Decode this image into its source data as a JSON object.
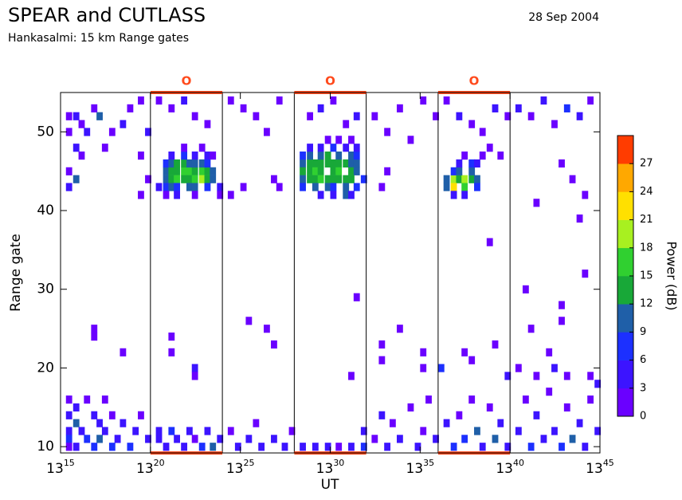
{
  "chart_data": {
    "type": "heatmap",
    "title": "SPEAR and CUTLASS",
    "subtitle": "Hankasalmi: 15 km Range gates",
    "date": "28 Sep 2004",
    "x_label": "UT",
    "y_label": "Range gate",
    "colorbar_label": "Power (dB)",
    "xlim": [
      15,
      45
    ],
    "xticks": [
      {
        "value": 15,
        "label": "13",
        "sup": "15"
      },
      {
        "value": 20,
        "label": "13",
        "sup": "20"
      },
      {
        "value": 25,
        "label": "13",
        "sup": "25"
      },
      {
        "value": 30,
        "label": "13",
        "sup": "30"
      },
      {
        "value": 35,
        "label": "13",
        "sup": "35"
      },
      {
        "value": 40,
        "label": "13",
        "sup": "40"
      },
      {
        "value": 45,
        "label": "13",
        "sup": "45"
      }
    ],
    "ylim": [
      9.2,
      55
    ],
    "yticks": [
      10,
      20,
      30,
      40,
      50
    ],
    "colorscale": {
      "limits": [
        0,
        30
      ],
      "ticks": [
        0,
        3,
        6,
        9,
        12,
        15,
        18,
        21,
        24,
        27
      ],
      "colors": [
        "#6a00ff",
        "#3c14ff",
        "#1c30ff",
        "#1f5fa8",
        "#18a838",
        "#30d030",
        "#a8f020",
        "#ffe000",
        "#ffa800",
        "#ff3c00"
      ]
    },
    "interval_color": "#ff4a1c",
    "intervals": [
      {
        "start": 20,
        "end": 24,
        "label": "O"
      },
      {
        "start": 28,
        "end": 32,
        "label": "O"
      },
      {
        "start": 36,
        "end": 40,
        "label": "O"
      }
    ],
    "cells": [
      [
        20.7,
        45,
        9
      ],
      [
        21.0,
        45,
        12
      ],
      [
        21.3,
        45,
        14
      ],
      [
        21.7,
        45,
        15
      ],
      [
        22.0,
        45,
        15
      ],
      [
        22.3,
        45,
        14
      ],
      [
        22.7,
        45,
        17
      ],
      [
        23.0,
        45,
        14
      ],
      [
        23.3,
        45,
        11
      ],
      [
        20.7,
        44,
        10
      ],
      [
        21.0,
        44,
        13
      ],
      [
        21.3,
        44,
        15
      ],
      [
        21.7,
        44,
        14
      ],
      [
        22.0,
        44,
        13
      ],
      [
        22.3,
        44,
        15
      ],
      [
        22.7,
        44,
        18
      ],
      [
        23.0,
        44,
        13
      ],
      [
        23.3,
        44,
        9
      ],
      [
        20.7,
        46,
        7
      ],
      [
        21.0,
        46,
        10
      ],
      [
        21.3,
        46,
        13
      ],
      [
        21.7,
        46,
        12
      ],
      [
        22.0,
        46,
        10
      ],
      [
        22.3,
        46,
        11
      ],
      [
        22.7,
        46,
        9
      ],
      [
        23.0,
        46,
        8
      ],
      [
        20.3,
        43,
        5
      ],
      [
        20.7,
        43,
        8
      ],
      [
        21.0,
        43,
        9
      ],
      [
        21.3,
        43,
        7
      ],
      [
        22.0,
        43,
        10
      ],
      [
        22.3,
        43,
        9
      ],
      [
        23.0,
        43,
        6
      ],
      [
        23.7,
        43,
        4
      ],
      [
        21.0,
        47,
        4
      ],
      [
        21.7,
        47,
        6
      ],
      [
        22.3,
        47,
        5
      ],
      [
        23.0,
        47,
        3
      ],
      [
        23.3,
        47,
        2
      ],
      [
        20.7,
        42,
        2
      ],
      [
        21.3,
        42,
        3
      ],
      [
        22.3,
        42,
        2
      ],
      [
        23.7,
        42,
        1
      ],
      [
        21.7,
        48,
        2
      ],
      [
        22.7,
        48,
        1
      ],
      [
        28.3,
        46,
        11
      ],
      [
        28.7,
        46,
        13
      ],
      [
        29.0,
        46,
        14
      ],
      [
        29.3,
        46,
        13
      ],
      [
        29.7,
        46,
        12
      ],
      [
        30.0,
        46,
        12
      ],
      [
        30.3,
        46,
        13
      ],
      [
        30.7,
        46,
        12
      ],
      [
        31.0,
        46,
        11
      ],
      [
        31.3,
        46,
        9
      ],
      [
        28.3,
        45,
        12
      ],
      [
        28.7,
        45,
        14
      ],
      [
        29.0,
        45,
        15
      ],
      [
        29.3,
        45,
        14
      ],
      [
        30.0,
        45,
        13
      ],
      [
        30.3,
        45,
        15
      ],
      [
        31.0,
        45,
        13
      ],
      [
        31.3,
        45,
        10
      ],
      [
        28.3,
        44,
        10
      ],
      [
        28.7,
        44,
        13
      ],
      [
        29.0,
        44,
        14
      ],
      [
        29.3,
        44,
        16
      ],
      [
        29.7,
        44,
        13
      ],
      [
        30.0,
        44,
        14
      ],
      [
        30.3,
        44,
        13
      ],
      [
        30.7,
        44,
        14
      ],
      [
        31.0,
        44,
        12
      ],
      [
        31.7,
        44,
        6
      ],
      [
        28.3,
        47,
        8
      ],
      [
        28.7,
        47,
        10
      ],
      [
        29.3,
        47,
        11
      ],
      [
        29.7,
        47,
        12
      ],
      [
        30.3,
        47,
        10
      ],
      [
        31.0,
        47,
        9
      ],
      [
        31.3,
        47,
        8
      ],
      [
        28.3,
        43,
        7
      ],
      [
        29.0,
        43,
        9
      ],
      [
        29.7,
        43,
        10
      ],
      [
        30.0,
        43,
        8
      ],
      [
        30.7,
        43,
        9
      ],
      [
        31.3,
        43,
        7
      ],
      [
        28.7,
        48,
        4
      ],
      [
        29.3,
        48,
        5
      ],
      [
        30.0,
        48,
        6
      ],
      [
        30.7,
        48,
        5
      ],
      [
        31.3,
        48,
        4
      ],
      [
        29.3,
        42,
        3
      ],
      [
        30.0,
        42,
        4
      ],
      [
        30.7,
        42,
        9
      ],
      [
        31.0,
        42,
        3
      ],
      [
        29.7,
        49,
        2
      ],
      [
        30.3,
        49,
        2
      ],
      [
        31.0,
        49,
        1
      ],
      [
        36.3,
        44,
        10
      ],
      [
        36.7,
        44,
        18
      ],
      [
        37.0,
        44,
        12
      ],
      [
        37.3,
        44,
        19
      ],
      [
        37.7,
        44,
        13
      ],
      [
        38.0,
        44,
        9
      ],
      [
        36.3,
        43,
        9
      ],
      [
        36.7,
        43,
        21
      ],
      [
        37.3,
        43,
        16
      ],
      [
        38.0,
        43,
        8
      ],
      [
        36.7,
        45,
        8
      ],
      [
        37.0,
        45,
        9
      ],
      [
        37.7,
        45,
        10
      ],
      [
        37.0,
        46,
        5
      ],
      [
        37.7,
        46,
        6
      ],
      [
        38.0,
        46,
        4
      ],
      [
        36.7,
        42,
        3
      ],
      [
        37.3,
        42,
        4
      ],
      [
        37.3,
        47,
        2
      ],
      [
        38.3,
        47,
        1
      ],
      [
        15.3,
        52,
        2
      ],
      [
        15.7,
        52,
        3
      ],
      [
        16.0,
        51,
        1
      ],
      [
        15.3,
        50,
        2
      ],
      [
        16.3,
        50,
        4
      ],
      [
        16.7,
        53,
        2
      ],
      [
        17.0,
        52,
        9
      ],
      [
        15.7,
        48,
        3
      ],
      [
        16.0,
        47,
        2
      ],
      [
        17.3,
        48,
        1
      ],
      [
        15.3,
        45,
        1
      ],
      [
        15.7,
        44,
        10
      ],
      [
        15.3,
        43,
        4
      ],
      [
        17.7,
        50,
        2
      ],
      [
        18.3,
        51,
        3
      ],
      [
        18.7,
        53,
        1
      ],
      [
        19.3,
        54,
        2
      ],
      [
        19.7,
        50,
        3
      ],
      [
        19.3,
        47,
        1
      ],
      [
        19.7,
        44,
        2
      ],
      [
        19.3,
        42,
        1
      ],
      [
        20.3,
        54,
        2
      ],
      [
        21.0,
        53,
        1
      ],
      [
        21.7,
        54,
        3
      ],
      [
        22.3,
        52,
        2
      ],
      [
        23.0,
        51,
        1
      ],
      [
        24.3,
        54,
        2
      ],
      [
        25.0,
        53,
        1
      ],
      [
        25.7,
        52,
        2
      ],
      [
        26.3,
        50,
        1
      ],
      [
        27.0,
        54,
        2
      ],
      [
        26.7,
        44,
        1
      ],
      [
        27.0,
        43,
        2
      ],
      [
        25.0,
        43,
        1
      ],
      [
        24.3,
        42,
        2
      ],
      [
        28.7,
        52,
        2
      ],
      [
        29.3,
        53,
        3
      ],
      [
        30.0,
        54,
        2
      ],
      [
        30.7,
        51,
        1
      ],
      [
        31.3,
        52,
        3
      ],
      [
        32.3,
        52,
        1
      ],
      [
        33.0,
        50,
        2
      ],
      [
        33.7,
        53,
        1
      ],
      [
        34.3,
        49,
        2
      ],
      [
        35.0,
        54,
        1
      ],
      [
        35.7,
        52,
        2
      ],
      [
        33.0,
        45,
        1
      ],
      [
        32.7,
        43,
        2
      ],
      [
        36.3,
        54,
        2
      ],
      [
        37.0,
        52,
        3
      ],
      [
        37.7,
        51,
        2
      ],
      [
        38.3,
        50,
        1
      ],
      [
        39.0,
        53,
        3
      ],
      [
        39.7,
        52,
        2
      ],
      [
        38.7,
        48,
        1
      ],
      [
        39.3,
        47,
        2
      ],
      [
        40.3,
        53,
        3
      ],
      [
        41.0,
        52,
        2
      ],
      [
        41.7,
        54,
        4
      ],
      [
        42.3,
        51,
        2
      ],
      [
        43.0,
        53,
        8
      ],
      [
        43.7,
        52,
        3
      ],
      [
        44.3,
        54,
        2
      ],
      [
        42.7,
        46,
        1
      ],
      [
        43.3,
        44,
        2
      ],
      [
        44.0,
        42,
        1
      ],
      [
        43.7,
        39,
        2
      ],
      [
        41.3,
        41,
        1
      ],
      [
        38.7,
        36,
        1
      ],
      [
        44.0,
        32,
        1
      ],
      [
        40.7,
        30,
        2
      ],
      [
        42.7,
        28,
        1
      ],
      [
        31.3,
        29,
        1
      ],
      [
        16.7,
        25,
        2
      ],
      [
        16.7,
        24,
        1
      ],
      [
        18.3,
        22,
        2
      ],
      [
        21.0,
        24,
        2
      ],
      [
        21.0,
        22,
        1
      ],
      [
        22.3,
        20,
        3
      ],
      [
        22.3,
        19,
        2
      ],
      [
        25.3,
        26,
        2
      ],
      [
        26.3,
        25,
        1
      ],
      [
        26.7,
        23,
        2
      ],
      [
        31.0,
        19,
        1
      ],
      [
        32.7,
        23,
        2
      ],
      [
        32.7,
        21,
        1
      ],
      [
        33.7,
        25,
        2
      ],
      [
        35.0,
        22,
        1
      ],
      [
        35.0,
        20,
        2
      ],
      [
        36.0,
        20,
        7
      ],
      [
        37.3,
        22,
        2
      ],
      [
        37.7,
        21,
        1
      ],
      [
        39.0,
        23,
        2
      ],
      [
        39.7,
        19,
        3
      ],
      [
        40.3,
        20,
        1
      ],
      [
        41.3,
        19,
        2
      ],
      [
        42.0,
        22,
        1
      ],
      [
        42.3,
        20,
        3
      ],
      [
        43.0,
        19,
        2
      ],
      [
        44.3,
        19,
        1
      ],
      [
        44.7,
        18,
        3
      ],
      [
        42.7,
        26,
        2
      ],
      [
        41.0,
        25,
        1
      ],
      [
        15.3,
        16,
        2
      ],
      [
        15.3,
        14,
        4
      ],
      [
        15.3,
        12,
        3
      ],
      [
        15.3,
        11,
        6
      ],
      [
        15.3,
        10,
        2
      ],
      [
        15.7,
        15,
        3
      ],
      [
        15.7,
        13,
        9
      ],
      [
        15.7,
        10,
        5
      ],
      [
        16.0,
        12,
        4
      ],
      [
        16.3,
        11,
        8
      ],
      [
        16.3,
        16,
        2
      ],
      [
        16.7,
        14,
        3
      ],
      [
        16.7,
        10,
        7
      ],
      [
        17.0,
        13,
        5
      ],
      [
        17.0,
        11,
        10
      ],
      [
        17.3,
        16,
        2
      ],
      [
        17.3,
        12,
        4
      ],
      [
        17.7,
        10,
        6
      ],
      [
        17.7,
        14,
        2
      ],
      [
        18.0,
        11,
        5
      ],
      [
        18.3,
        13,
        3
      ],
      [
        18.7,
        10,
        8
      ],
      [
        19.0,
        12,
        4
      ],
      [
        19.3,
        14,
        2
      ],
      [
        19.7,
        11,
        3
      ],
      [
        20.3,
        12,
        5
      ],
      [
        20.3,
        11,
        3
      ],
      [
        20.7,
        10,
        4
      ],
      [
        21.0,
        12,
        6
      ],
      [
        21.3,
        11,
        5
      ],
      [
        21.7,
        10,
        3
      ],
      [
        22.0,
        12,
        4
      ],
      [
        22.3,
        11,
        2
      ],
      [
        22.7,
        10,
        6
      ],
      [
        23.0,
        12,
        3
      ],
      [
        23.3,
        10,
        11
      ],
      [
        23.7,
        11,
        5
      ],
      [
        24.3,
        12,
        2
      ],
      [
        24.7,
        10,
        4
      ],
      [
        25.3,
        11,
        3
      ],
      [
        25.7,
        13,
        2
      ],
      [
        26.0,
        10,
        5
      ],
      [
        26.7,
        11,
        3
      ],
      [
        27.3,
        10,
        4
      ],
      [
        27.7,
        12,
        2
      ],
      [
        28.3,
        10,
        4
      ],
      [
        29.0,
        10,
        3
      ],
      [
        29.7,
        10,
        5
      ],
      [
        30.3,
        10,
        2
      ],
      [
        31.0,
        10,
        4
      ],
      [
        31.7,
        10,
        6
      ],
      [
        31.7,
        12,
        3
      ],
      [
        32.3,
        11,
        2
      ],
      [
        32.7,
        14,
        3
      ],
      [
        33.0,
        10,
        4
      ],
      [
        33.3,
        13,
        2
      ],
      [
        33.7,
        11,
        5
      ],
      [
        34.3,
        15,
        1
      ],
      [
        34.7,
        10,
        3
      ],
      [
        35.0,
        12,
        2
      ],
      [
        35.3,
        16,
        1
      ],
      [
        35.7,
        11,
        4
      ],
      [
        36.3,
        13,
        3
      ],
      [
        36.7,
        10,
        8
      ],
      [
        37.0,
        14,
        2
      ],
      [
        37.3,
        11,
        6
      ],
      [
        37.7,
        16,
        1
      ],
      [
        38.0,
        12,
        9
      ],
      [
        38.3,
        10,
        4
      ],
      [
        38.7,
        15,
        2
      ],
      [
        39.0,
        11,
        11
      ],
      [
        39.3,
        13,
        3
      ],
      [
        39.7,
        10,
        5
      ],
      [
        40.3,
        12,
        4
      ],
      [
        40.7,
        16,
        2
      ],
      [
        41.0,
        10,
        6
      ],
      [
        41.3,
        14,
        3
      ],
      [
        41.7,
        11,
        5
      ],
      [
        42.0,
        17,
        1
      ],
      [
        42.3,
        12,
        4
      ],
      [
        42.7,
        10,
        7
      ],
      [
        43.0,
        15,
        2
      ],
      [
        43.3,
        11,
        9
      ],
      [
        43.7,
        13,
        3
      ],
      [
        44.0,
        10,
        5
      ],
      [
        44.3,
        16,
        2
      ],
      [
        44.7,
        12,
        4
      ]
    ]
  }
}
